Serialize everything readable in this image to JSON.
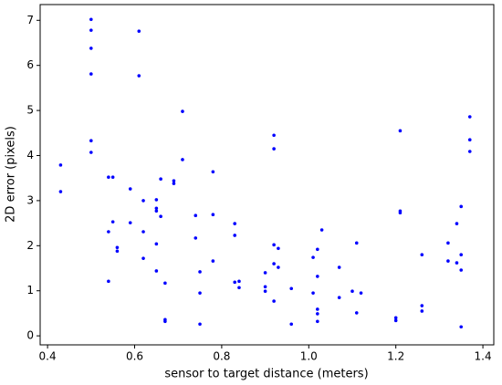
{
  "chart_data": {
    "type": "scatter",
    "x_label": "sensor to target distance (meters)",
    "y_label": "2D error (pixels)",
    "color": "#0000ff",
    "xlim": [
      0.383,
      1.425
    ],
    "ylim": [
      -0.2,
      7.35
    ],
    "xticks": [
      0.4,
      0.6,
      0.8,
      1.0,
      1.2,
      1.4
    ],
    "yticks": [
      0,
      1,
      2,
      3,
      4,
      5,
      6,
      7
    ],
    "x": [
      0.43,
      0.43,
      0.5,
      0.5,
      0.5,
      0.5,
      0.5,
      0.5,
      0.54,
      0.55,
      0.55,
      0.54,
      0.56,
      0.56,
      0.54,
      0.59,
      0.59,
      0.61,
      0.61,
      0.62,
      0.62,
      0.62,
      0.66,
      0.65,
      0.65,
      0.65,
      0.66,
      0.65,
      0.65,
      0.67,
      0.67,
      0.67,
      0.69,
      0.69,
      0.71,
      0.71,
      0.74,
      0.74,
      0.75,
      0.75,
      0.75,
      0.78,
      0.78,
      0.78,
      0.83,
      0.83,
      0.83,
      0.84,
      0.84,
      0.92,
      0.92,
      0.92,
      0.93,
      0.92,
      0.93,
      0.9,
      0.9,
      0.9,
      0.92,
      0.96,
      0.96,
      1.03,
      1.02,
      1.01,
      1.02,
      1.01,
      1.02,
      1.02,
      1.02,
      1.07,
      1.07,
      1.11,
      1.1,
      1.12,
      1.11,
      1.21,
      1.21,
      1.21,
      1.2,
      1.2,
      1.26,
      1.26,
      1.26,
      1.32,
      1.32,
      1.34,
      1.34,
      1.35,
      1.35,
      1.35,
      1.35,
      1.37,
      1.37,
      1.37
    ],
    "values": [
      3.79,
      3.2,
      7.02,
      6.78,
      6.38,
      5.81,
      4.33,
      4.07,
      3.52,
      3.52,
      2.53,
      2.31,
      1.96,
      1.88,
      1.21,
      3.26,
      2.51,
      6.76,
      5.77,
      3.0,
      2.31,
      1.72,
      3.48,
      3.02,
      2.83,
      2.77,
      2.65,
      2.04,
      1.44,
      1.17,
      0.36,
      0.32,
      3.44,
      3.38,
      4.98,
      3.91,
      2.67,
      2.17,
      1.42,
      0.95,
      0.26,
      3.64,
      2.69,
      1.66,
      2.49,
      2.23,
      1.19,
      1.21,
      1.07,
      4.45,
      4.15,
      2.02,
      1.94,
      1.6,
      1.52,
      1.4,
      1.09,
      0.99,
      0.77,
      1.05,
      0.26,
      2.35,
      1.92,
      1.74,
      1.32,
      0.95,
      0.59,
      0.49,
      0.32,
      1.52,
      0.85,
      2.06,
      0.99,
      0.95,
      0.51,
      4.55,
      2.77,
      2.73,
      0.4,
      0.34,
      1.8,
      0.67,
      0.55,
      2.06,
      1.66,
      1.62,
      2.49,
      2.87,
      1.8,
      1.46,
      0.2,
      4.86,
      4.35,
      4.09
    ]
  }
}
